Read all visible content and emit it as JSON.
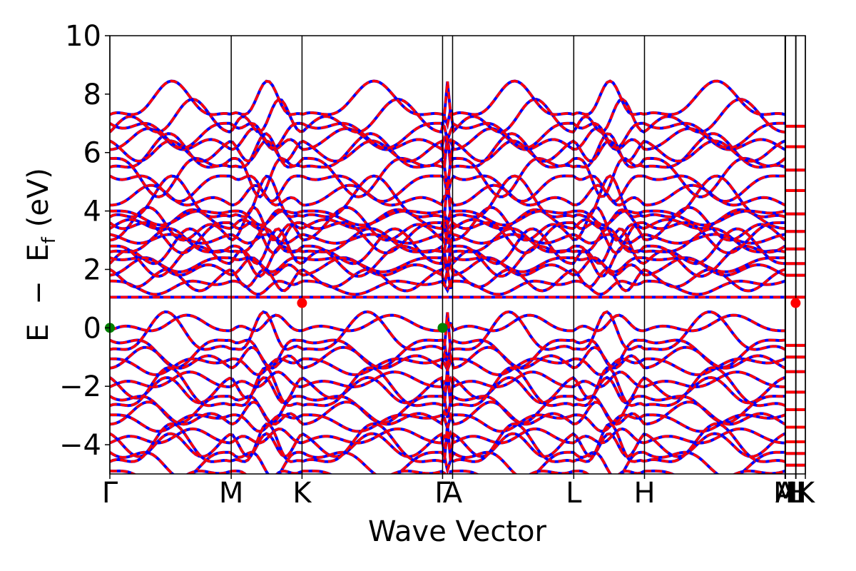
{
  "chart_data": {
    "type": "line",
    "title": "",
    "xlabel": "Wave Vector",
    "ylabel_parts": {
      "e": "E",
      "minus": "−",
      "ef_main": "E",
      "ef_sub": "f",
      "unit": "(eV)"
    },
    "ylim": [
      -5,
      10
    ],
    "y_ticks": [
      -4,
      -2,
      0,
      2,
      4,
      6,
      8,
      10
    ],
    "y_tick_labels": [
      "−4",
      "−2",
      "0",
      "2",
      "4",
      "6",
      "8",
      "10"
    ],
    "x_range": [
      0,
      1
    ],
    "high_symmetry_points": [
      {
        "label": "Γ",
        "x": 0.0
      },
      {
        "label": "M",
        "x": 0.1745
      },
      {
        "label": "K",
        "x": 0.2763
      },
      {
        "label": "Γ",
        "x": 0.4784
      },
      {
        "label": "A",
        "x": 0.4928
      },
      {
        "label": "L",
        "x": 0.667
      },
      {
        "label": "H",
        "x": 0.7687
      },
      {
        "label": "A",
        "x": 0.9708
      },
      {
        "label": "M",
        "x": 0.9715
      },
      {
        "label": "L",
        "x": 0.9861
      },
      {
        "label": "H",
        "x": 0.9865
      },
      {
        "label": "K",
        "x": 1.0
      }
    ],
    "series": [
      {
        "style": "solid",
        "color": "#0000ff"
      },
      {
        "style": "dashed",
        "color": "#ff0000"
      }
    ],
    "extrema_points": [
      {
        "type": "VBM",
        "x": 0.0,
        "y": 0.0,
        "color": "#008000"
      },
      {
        "type": "VBM",
        "x": 0.4784,
        "y": 0.0,
        "color": "#008000"
      },
      {
        "type": "CBM",
        "x": 0.2763,
        "y": 0.85,
        "color": "#ff0000"
      },
      {
        "type": "CBM",
        "x": 0.986,
        "y": 0.85,
        "color": "#ff0000"
      }
    ],
    "grid": false,
    "legend": "none"
  }
}
